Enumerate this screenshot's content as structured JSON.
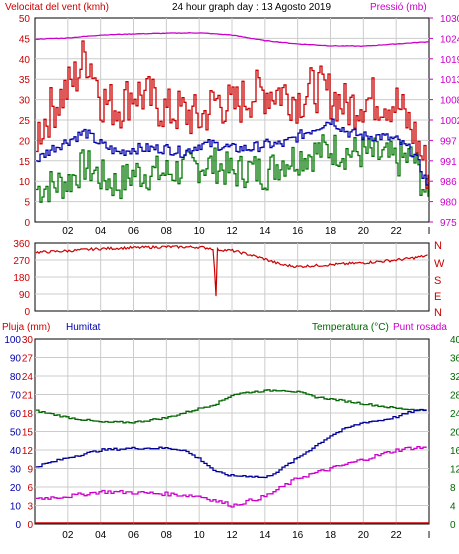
{
  "header": {
    "wind_label": "Velocitat del vent (kmh)",
    "title": "24 hour graph day : 13 Agosto 2019",
    "pressure_label": "Pressió (mb)"
  },
  "middle": {
    "cardinals": [
      "N",
      "W",
      "S",
      "E",
      "N"
    ]
  },
  "bottom_header": {
    "rain_label": "Pluja (mm)",
    "humidity_label": "Humitat",
    "temp_label": "Temperatura (°C)",
    "dew_label": "Punt rosada"
  },
  "colors": {
    "wind": "#cc0000",
    "gust": "#cc0000",
    "avg_wind": "#0000aa",
    "min_wind": "#007700",
    "pressure": "#cc00cc",
    "direction": "#cc0000",
    "temperature": "#006600",
    "humidity": "#000099",
    "dew_point": "#cc00cc",
    "rain": "#cc0000",
    "grid": "#cccccc",
    "axis_left_wind": "#cc0000",
    "axis_right_pressure": "#cc00cc",
    "axis_humidity": "#0000aa",
    "axis_rain": "#cc0000",
    "axis_temp": "#006600"
  },
  "chart_data": [
    {
      "type": "line",
      "title": "24 hour graph day : 13 Agosto 2019",
      "x_ticks": [
        "02",
        "04",
        "06",
        "08",
        "10",
        "12",
        "14",
        "16",
        "18",
        "20",
        "22",
        "I"
      ],
      "x_range_hours": [
        0,
        24
      ],
      "left_axis": {
        "label": "Velocitat del vent (kmh)",
        "range": [
          0,
          50
        ],
        "ticks": [
          "0",
          "5",
          "10",
          "15",
          "20",
          "25",
          "30",
          "35",
          "40",
          "45",
          "50"
        ]
      },
      "right_axis": {
        "label": "Pressió (mb)",
        "range": [
          975,
          1030
        ],
        "ticks": [
          "975",
          "980",
          "986",
          "991",
          "997",
          "1002",
          "1008",
          "1013",
          "1019",
          "1024",
          "1030"
        ]
      },
      "grid": true,
      "series": [
        {
          "name": "Velocitat del vent (kmh)",
          "axis": "left",
          "x": [
            0,
            1,
            2,
            2.5,
            3,
            3.5,
            4,
            5,
            6,
            7,
            8,
            9,
            10,
            11,
            12,
            13,
            14,
            15,
            16,
            17,
            18,
            19,
            20,
            21,
            22,
            23,
            24
          ],
          "y": [
            21,
            28,
            33,
            36,
            41,
            38,
            30,
            28,
            32,
            30,
            27,
            27,
            25,
            30,
            28,
            31,
            32,
            32,
            30,
            33,
            31,
            28,
            30,
            30,
            29,
            22,
            11
          ]
        },
        {
          "name": "avg",
          "axis": "left",
          "x": [
            0,
            1,
            2,
            3,
            4,
            5,
            6,
            7,
            8,
            9,
            10,
            11,
            12,
            13,
            14,
            15,
            16,
            17,
            18,
            19,
            20,
            21,
            22,
            23,
            24
          ],
          "y": [
            15,
            18,
            20,
            22,
            19,
            17,
            18,
            18,
            18,
            17,
            19,
            19,
            18,
            18,
            19,
            19,
            21,
            23,
            25,
            22,
            21,
            21,
            20,
            17,
            8
          ]
        },
        {
          "name": "min",
          "axis": "left",
          "x": [
            0,
            1,
            2,
            3,
            4,
            5,
            6,
            7,
            8,
            9,
            10,
            11,
            12,
            13,
            14,
            15,
            16,
            17,
            18,
            19,
            20,
            21,
            22,
            23,
            24
          ],
          "y": [
            8,
            9,
            10,
            14,
            11,
            9,
            12,
            12,
            12,
            13,
            14,
            14,
            12,
            13,
            12,
            15,
            16,
            17,
            18,
            17,
            17,
            16,
            15,
            16,
            4
          ]
        },
        {
          "name": "Pressió (mb)",
          "axis": "right",
          "x": [
            0,
            2,
            4,
            6,
            8,
            10,
            12,
            14,
            16,
            18,
            20,
            22,
            24
          ],
          "y": [
            1024.3,
            1024.6,
            1025.4,
            1025.7,
            1025.9,
            1026.0,
            1025.4,
            1023.9,
            1023.0,
            1022.5,
            1022.4,
            1023.0,
            1023.6
          ]
        }
      ]
    },
    {
      "type": "line",
      "x_ticks": [
        "02",
        "04",
        "06",
        "08",
        "10",
        "12",
        "14",
        "16",
        "18",
        "20",
        "22",
        "I"
      ],
      "y_axis": {
        "range": [
          0,
          360
        ],
        "ticks": [
          "0",
          "90",
          "180",
          "270",
          "360"
        ]
      },
      "right_labels": [
        "N",
        "W",
        "S",
        "E",
        "N"
      ],
      "grid": true,
      "series": [
        {
          "name": "direction",
          "x": [
            0,
            2,
            4,
            6,
            8,
            10,
            10.9,
            11.0,
            11.1,
            12,
            13,
            14,
            15,
            16,
            17,
            18,
            19,
            20,
            21,
            22,
            23,
            24
          ],
          "y": [
            310,
            318,
            330,
            335,
            340,
            338,
            330,
            0,
            325,
            320,
            300,
            275,
            245,
            235,
            240,
            245,
            250,
            255,
            262,
            270,
            280,
            295
          ]
        }
      ]
    },
    {
      "type": "line",
      "x_ticks": [
        "02",
        "04",
        "06",
        "08",
        "10",
        "12",
        "14",
        "16",
        "18",
        "20",
        "22",
        "I"
      ],
      "left_axis_rain": {
        "label": "Pluja (mm)",
        "range": [
          0,
          30
        ],
        "ticks": [
          "0",
          "3",
          "6",
          "9",
          "12",
          "15",
          "18",
          "21",
          "24",
          "27",
          "30"
        ]
      },
      "left_axis_humidity": {
        "label": "Humitat",
        "range": [
          0,
          100
        ],
        "ticks": [
          "0",
          "10",
          "20",
          "30",
          "40",
          "50",
          "60",
          "70",
          "80",
          "90",
          "100"
        ]
      },
      "right_axis": {
        "label": "Temperatura (°C)",
        "range": [
          0,
          40
        ],
        "ticks": [
          "0",
          "4",
          "8",
          "12",
          "16",
          "20",
          "24",
          "28",
          "32",
          "36",
          "40"
        ]
      },
      "grid": true,
      "series": [
        {
          "name": "Temperatura (°C)",
          "axis": "right",
          "x": [
            0,
            2,
            4,
            6,
            8,
            10,
            11,
            12,
            13,
            14,
            15,
            16,
            17,
            18,
            20,
            22,
            24
          ],
          "y": [
            24.5,
            23,
            22,
            22,
            23,
            25,
            26,
            28,
            28.5,
            28.8,
            29,
            28.5,
            27.5,
            27,
            26,
            25,
            24.5
          ]
        },
        {
          "name": "Humitat",
          "axis": "humidity",
          "x": [
            0,
            2,
            4,
            6,
            8,
            9,
            10,
            11,
            12,
            13,
            14,
            15,
            16,
            17,
            18,
            19,
            20,
            21,
            22,
            23,
            24
          ],
          "y": [
            31,
            36,
            40,
            41,
            41,
            40,
            35,
            28,
            26,
            26,
            25,
            30,
            36,
            42,
            48,
            52,
            55,
            56,
            58,
            61,
            62
          ]
        },
        {
          "name": "Punt rosada",
          "axis": "right",
          "x": [
            0,
            2,
            4,
            6,
            8,
            10,
            11,
            12,
            13,
            14,
            15,
            16,
            17,
            18,
            20,
            22,
            23,
            24
          ],
          "y": [
            5.5,
            6,
            7,
            6.8,
            6.5,
            6,
            5,
            4,
            5,
            6,
            8,
            10,
            11,
            12,
            14,
            16,
            16.5,
            16.5
          ]
        },
        {
          "name": "Pluja (mm)",
          "axis": "rain",
          "x": [
            0,
            24
          ],
          "y": [
            0,
            0
          ]
        }
      ]
    }
  ]
}
